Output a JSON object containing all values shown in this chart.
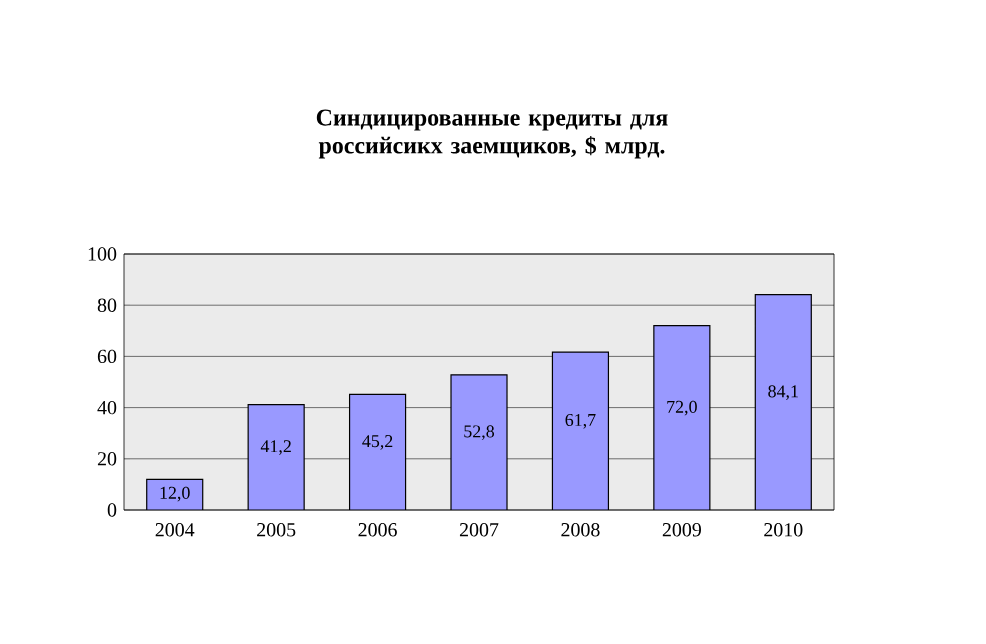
{
  "chart_data": {
    "type": "bar",
    "title": "Синдицированные кредиты для российсикх заемщиков, $ млрд.",
    "categories": [
      "2004",
      "2005",
      "2006",
      "2007",
      "2008",
      "2009",
      "2010"
    ],
    "values": [
      12.0,
      41.2,
      45.2,
      52.8,
      61.7,
      72.0,
      84.1
    ],
    "value_labels": [
      "12,0",
      "41,2",
      "45,2",
      "52,8",
      "61,7",
      "72,0",
      "84,1"
    ],
    "color": "#9999ff",
    "ylim": [
      0,
      100
    ],
    "yticks": [
      0,
      20,
      40,
      60,
      80,
      100
    ],
    "grid": "y"
  }
}
